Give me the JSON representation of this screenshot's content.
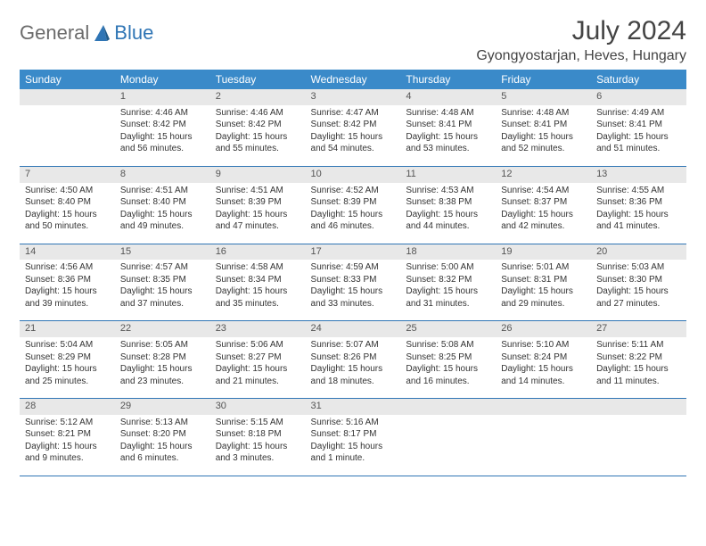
{
  "logo": {
    "text1": "General",
    "text2": "Blue"
  },
  "title": "July 2024",
  "location": "Gyongyostarjan, Heves, Hungary",
  "colors": {
    "header_bg": "#3a8ac9",
    "daynum_bg": "#e8e8e8",
    "row_border": "#2f75b5",
    "text": "#333333",
    "logo_gray": "#6b6b6b",
    "logo_blue": "#2f75b5"
  },
  "weekdays": [
    "Sunday",
    "Monday",
    "Tuesday",
    "Wednesday",
    "Thursday",
    "Friday",
    "Saturday"
  ],
  "weeks": [
    [
      null,
      {
        "n": "1",
        "sunrise": "Sunrise: 4:46 AM",
        "sunset": "Sunset: 8:42 PM",
        "day1": "Daylight: 15 hours",
        "day2": "and 56 minutes."
      },
      {
        "n": "2",
        "sunrise": "Sunrise: 4:46 AM",
        "sunset": "Sunset: 8:42 PM",
        "day1": "Daylight: 15 hours",
        "day2": "and 55 minutes."
      },
      {
        "n": "3",
        "sunrise": "Sunrise: 4:47 AM",
        "sunset": "Sunset: 8:42 PM",
        "day1": "Daylight: 15 hours",
        "day2": "and 54 minutes."
      },
      {
        "n": "4",
        "sunrise": "Sunrise: 4:48 AM",
        "sunset": "Sunset: 8:41 PM",
        "day1": "Daylight: 15 hours",
        "day2": "and 53 minutes."
      },
      {
        "n": "5",
        "sunrise": "Sunrise: 4:48 AM",
        "sunset": "Sunset: 8:41 PM",
        "day1": "Daylight: 15 hours",
        "day2": "and 52 minutes."
      },
      {
        "n": "6",
        "sunrise": "Sunrise: 4:49 AM",
        "sunset": "Sunset: 8:41 PM",
        "day1": "Daylight: 15 hours",
        "day2": "and 51 minutes."
      }
    ],
    [
      {
        "n": "7",
        "sunrise": "Sunrise: 4:50 AM",
        "sunset": "Sunset: 8:40 PM",
        "day1": "Daylight: 15 hours",
        "day2": "and 50 minutes."
      },
      {
        "n": "8",
        "sunrise": "Sunrise: 4:51 AM",
        "sunset": "Sunset: 8:40 PM",
        "day1": "Daylight: 15 hours",
        "day2": "and 49 minutes."
      },
      {
        "n": "9",
        "sunrise": "Sunrise: 4:51 AM",
        "sunset": "Sunset: 8:39 PM",
        "day1": "Daylight: 15 hours",
        "day2": "and 47 minutes."
      },
      {
        "n": "10",
        "sunrise": "Sunrise: 4:52 AM",
        "sunset": "Sunset: 8:39 PM",
        "day1": "Daylight: 15 hours",
        "day2": "and 46 minutes."
      },
      {
        "n": "11",
        "sunrise": "Sunrise: 4:53 AM",
        "sunset": "Sunset: 8:38 PM",
        "day1": "Daylight: 15 hours",
        "day2": "and 44 minutes."
      },
      {
        "n": "12",
        "sunrise": "Sunrise: 4:54 AM",
        "sunset": "Sunset: 8:37 PM",
        "day1": "Daylight: 15 hours",
        "day2": "and 42 minutes."
      },
      {
        "n": "13",
        "sunrise": "Sunrise: 4:55 AM",
        "sunset": "Sunset: 8:36 PM",
        "day1": "Daylight: 15 hours",
        "day2": "and 41 minutes."
      }
    ],
    [
      {
        "n": "14",
        "sunrise": "Sunrise: 4:56 AM",
        "sunset": "Sunset: 8:36 PM",
        "day1": "Daylight: 15 hours",
        "day2": "and 39 minutes."
      },
      {
        "n": "15",
        "sunrise": "Sunrise: 4:57 AM",
        "sunset": "Sunset: 8:35 PM",
        "day1": "Daylight: 15 hours",
        "day2": "and 37 minutes."
      },
      {
        "n": "16",
        "sunrise": "Sunrise: 4:58 AM",
        "sunset": "Sunset: 8:34 PM",
        "day1": "Daylight: 15 hours",
        "day2": "and 35 minutes."
      },
      {
        "n": "17",
        "sunrise": "Sunrise: 4:59 AM",
        "sunset": "Sunset: 8:33 PM",
        "day1": "Daylight: 15 hours",
        "day2": "and 33 minutes."
      },
      {
        "n": "18",
        "sunrise": "Sunrise: 5:00 AM",
        "sunset": "Sunset: 8:32 PM",
        "day1": "Daylight: 15 hours",
        "day2": "and 31 minutes."
      },
      {
        "n": "19",
        "sunrise": "Sunrise: 5:01 AM",
        "sunset": "Sunset: 8:31 PM",
        "day1": "Daylight: 15 hours",
        "day2": "and 29 minutes."
      },
      {
        "n": "20",
        "sunrise": "Sunrise: 5:03 AM",
        "sunset": "Sunset: 8:30 PM",
        "day1": "Daylight: 15 hours",
        "day2": "and 27 minutes."
      }
    ],
    [
      {
        "n": "21",
        "sunrise": "Sunrise: 5:04 AM",
        "sunset": "Sunset: 8:29 PM",
        "day1": "Daylight: 15 hours",
        "day2": "and 25 minutes."
      },
      {
        "n": "22",
        "sunrise": "Sunrise: 5:05 AM",
        "sunset": "Sunset: 8:28 PM",
        "day1": "Daylight: 15 hours",
        "day2": "and 23 minutes."
      },
      {
        "n": "23",
        "sunrise": "Sunrise: 5:06 AM",
        "sunset": "Sunset: 8:27 PM",
        "day1": "Daylight: 15 hours",
        "day2": "and 21 minutes."
      },
      {
        "n": "24",
        "sunrise": "Sunrise: 5:07 AM",
        "sunset": "Sunset: 8:26 PM",
        "day1": "Daylight: 15 hours",
        "day2": "and 18 minutes."
      },
      {
        "n": "25",
        "sunrise": "Sunrise: 5:08 AM",
        "sunset": "Sunset: 8:25 PM",
        "day1": "Daylight: 15 hours",
        "day2": "and 16 minutes."
      },
      {
        "n": "26",
        "sunrise": "Sunrise: 5:10 AM",
        "sunset": "Sunset: 8:24 PM",
        "day1": "Daylight: 15 hours",
        "day2": "and 14 minutes."
      },
      {
        "n": "27",
        "sunrise": "Sunrise: 5:11 AM",
        "sunset": "Sunset: 8:22 PM",
        "day1": "Daylight: 15 hours",
        "day2": "and 11 minutes."
      }
    ],
    [
      {
        "n": "28",
        "sunrise": "Sunrise: 5:12 AM",
        "sunset": "Sunset: 8:21 PM",
        "day1": "Daylight: 15 hours",
        "day2": "and 9 minutes."
      },
      {
        "n": "29",
        "sunrise": "Sunrise: 5:13 AM",
        "sunset": "Sunset: 8:20 PM",
        "day1": "Daylight: 15 hours",
        "day2": "and 6 minutes."
      },
      {
        "n": "30",
        "sunrise": "Sunrise: 5:15 AM",
        "sunset": "Sunset: 8:18 PM",
        "day1": "Daylight: 15 hours",
        "day2": "and 3 minutes."
      },
      {
        "n": "31",
        "sunrise": "Sunrise: 5:16 AM",
        "sunset": "Sunset: 8:17 PM",
        "day1": "Daylight: 15 hours",
        "day2": "and 1 minute."
      },
      null,
      null,
      null
    ]
  ]
}
